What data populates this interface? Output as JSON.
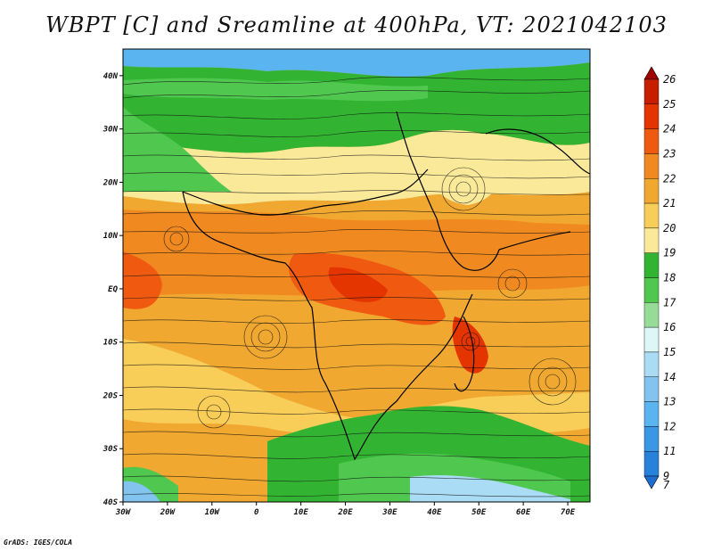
{
  "title": "WBPT [C] and Sreamline at 400hPa, VT: 2021042103",
  "credit": "GrADS: IGES/COLA",
  "map": {
    "lon_range": [
      -30,
      75
    ],
    "lat_range": [
      -40,
      45
    ],
    "lon_ticks": [
      {
        "value": -30,
        "label": "30W"
      },
      {
        "value": -20,
        "label": "20W"
      },
      {
        "value": -10,
        "label": "10W"
      },
      {
        "value": 0,
        "label": "0"
      },
      {
        "value": 10,
        "label": "10E"
      },
      {
        "value": 20,
        "label": "20E"
      },
      {
        "value": 30,
        "label": "30E"
      },
      {
        "value": 40,
        "label": "40E"
      },
      {
        "value": 50,
        "label": "50E"
      },
      {
        "value": 60,
        "label": "60E"
      },
      {
        "value": 70,
        "label": "70E"
      }
    ],
    "lat_ticks": [
      {
        "value": 40,
        "label": "40N"
      },
      {
        "value": 30,
        "label": "30N"
      },
      {
        "value": 20,
        "label": "20N"
      },
      {
        "value": 10,
        "label": "10N"
      },
      {
        "value": 0,
        "label": "EQ"
      },
      {
        "value": -10,
        "label": "10S"
      },
      {
        "value": -20,
        "label": "20S"
      },
      {
        "value": -30,
        "label": "30S"
      },
      {
        "value": -40,
        "label": "40S"
      }
    ]
  },
  "colorbar": {
    "levels": [
      "26",
      "25",
      "24",
      "23",
      "22",
      "21",
      "20",
      "19",
      "18",
      "17",
      "16",
      "15",
      "14",
      "13",
      "12",
      "11",
      "9",
      "7"
    ],
    "colors": [
      "#a00000",
      "#c81e00",
      "#e43400",
      "#f05a10",
      "#f08a20",
      "#f0a830",
      "#f8cd58",
      "#fbe99a",
      "#32b432",
      "#50c850",
      "#96dc96",
      "#ddf6f6",
      "#aadcf5",
      "#82c3f0",
      "#5ab4f0",
      "#3c96e6",
      "#2882dc",
      "#1e6ed2"
    ]
  }
}
